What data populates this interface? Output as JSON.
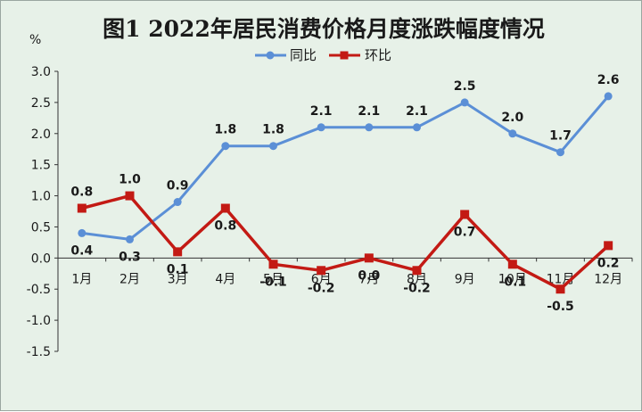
{
  "chart_data": {
    "type": "line",
    "title": "图1  2022年居民消费价格月度涨跌幅度情况",
    "ylabel": "%",
    "xlabel": "",
    "categories": [
      "1月",
      "2月",
      "3月",
      "4月",
      "5月",
      "6月",
      "7月",
      "8月",
      "9月",
      "10月",
      "11月",
      "12月"
    ],
    "y_ticks": [
      "3.0",
      "2.5",
      "2.0",
      "1.5",
      "1.0",
      "0.5",
      "0.0",
      "-0.5",
      "-1.0",
      "-1.5"
    ],
    "ylim": [
      -1.5,
      3.0
    ],
    "grid": false,
    "legend_position": "top-center",
    "series": [
      {
        "name": "同比",
        "color": "#5b8fd6",
        "marker": "circle",
        "values": [
          0.4,
          0.3,
          0.9,
          1.8,
          1.8,
          2.1,
          2.1,
          2.1,
          2.5,
          2.0,
          1.7,
          2.6
        ],
        "labels": [
          "0.4",
          "0.3",
          "0.9",
          "1.8",
          "1.8",
          "2.1",
          "2.1",
          "2.1",
          "2.5",
          "2.0",
          "1.7",
          "2.6"
        ]
      },
      {
        "name": "环比",
        "color": "#c31a14",
        "marker": "square",
        "values": [
          0.8,
          1.0,
          0.1,
          0.8,
          -0.1,
          -0.2,
          0.0,
          -0.2,
          0.7,
          -0.1,
          -0.5,
          0.2
        ],
        "labels": [
          "0.8",
          "1.0",
          "0.1",
          "0.8",
          "-0.1",
          "-0.2",
          "0.0",
          "-0.2",
          "0.7",
          "-0.1",
          "-0.5",
          "0.2"
        ]
      }
    ]
  }
}
